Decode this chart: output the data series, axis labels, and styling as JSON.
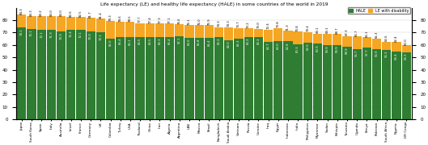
{
  "title": "Life expectancy (LE) and healthy life expectancy (HALE) in some countries of the world in 2019",
  "countries": [
    "Japan",
    "South Korea",
    "Spain",
    "Italy",
    "Australia",
    "Israel",
    "France",
    "Germany",
    "UK",
    "Colombia",
    "Turkey",
    "USA",
    "Thailand",
    "China",
    "Iran",
    "Algeria",
    "Argentina",
    "UAE",
    "Mexico",
    "Brazil",
    "Bangladesh",
    "Saudi Arabia",
    "Vietnam",
    "Russia",
    "Ukraine",
    "Iraq",
    "Egypt",
    "Indonesia",
    "India",
    "Philippines",
    "Myanmar",
    "Sudan",
    "Ethiopia",
    "Tanzania",
    "Uganda",
    "Kenya",
    "Pakistan",
    "South Africa",
    "Nigeria",
    "DR Congo"
  ],
  "le": [
    84.3,
    83.3,
    83.2,
    83.0,
    83.0,
    82.6,
    82.5,
    81.7,
    81.4,
    79.3,
    78.6,
    78.5,
    77.7,
    77.4,
    77.3,
    77.1,
    76.6,
    76.1,
    76.0,
    75.9,
    74.3,
    74.3,
    73.7,
    73.2,
    73.0,
    72.4,
    73.8,
    71.3,
    70.8,
    70.4,
    69.1,
    69.1,
    68.7,
    67.3,
    66.7,
    66.1,
    65.3,
    62.6,
    62.4,
    60.0
  ],
  "hale": [
    74.1,
    73.1,
    72.1,
    71.9,
    70.9,
    72.4,
    72.1,
    70.9,
    70.1,
    65.0,
    66.4,
    66.1,
    66.5,
    66.5,
    66.3,
    66.4,
    67.1,
    66.0,
    65.8,
    65.4,
    66.3,
    64.0,
    65.3,
    66.3,
    66.3,
    62.7,
    63.0,
    62.8,
    60.3,
    62.0,
    60.9,
    59.9,
    59.9,
    58.9,
    56.7,
    57.7,
    56.9,
    56.3,
    54.4,
    54.3
  ],
  "hale_color": "#2e7d32",
  "disability_color": "#f5a623",
  "bg_color": "#ffffff",
  "grid_color": "#cccccc",
  "ylim": [
    0,
    90
  ],
  "yticks": [
    0,
    10,
    20,
    30,
    40,
    50,
    60,
    70,
    80
  ],
  "legend_hale": "HALE",
  "legend_le": "LE with disability"
}
